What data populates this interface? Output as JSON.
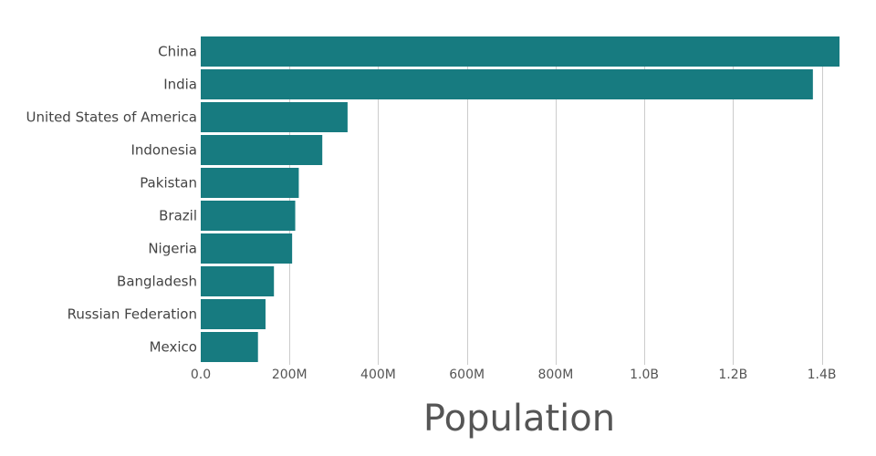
{
  "chart_data": {
    "type": "bar",
    "orientation": "horizontal",
    "categories": [
      "China",
      "India",
      "United States of America",
      "Indonesia",
      "Pakistan",
      "Brazil",
      "Nigeria",
      "Bangladesh",
      "Russian Federation",
      "Mexico"
    ],
    "values": [
      1440000000,
      1380000000,
      331000000,
      274000000,
      221000000,
      213000000,
      206000000,
      165000000,
      146000000,
      129000000
    ],
    "xlabel": "Population",
    "xlim": [
      0,
      1440000000
    ],
    "x_ticks": [
      {
        "value": 0,
        "label": "0.0"
      },
      {
        "value": 200000000,
        "label": "200M"
      },
      {
        "value": 400000000,
        "label": "400M"
      },
      {
        "value": 600000000,
        "label": "600M"
      },
      {
        "value": 800000000,
        "label": "800M"
      },
      {
        "value": 1000000000,
        "label": "1.0B"
      },
      {
        "value": 1200000000,
        "label": "1.2B"
      },
      {
        "value": 1400000000,
        "label": "1.4B"
      }
    ],
    "grid": "vertical",
    "bar_color": "#177b80"
  }
}
